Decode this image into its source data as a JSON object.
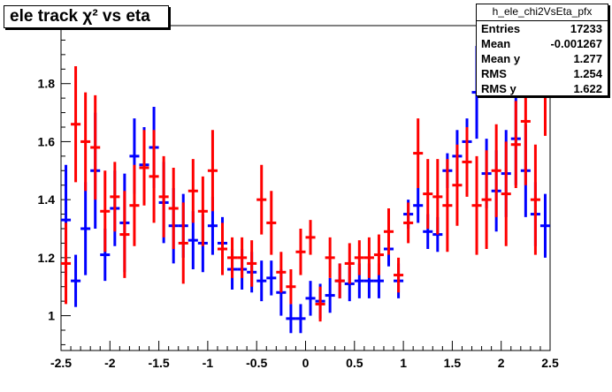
{
  "title": "ele track χ² vs eta",
  "stats": {
    "name": "h_ele_chi2VsEta_pfx",
    "rows": [
      {
        "label": "Entries",
        "value": "17233"
      },
      {
        "label": "Mean",
        "value": "-0.001267"
      },
      {
        "label": "Mean y",
        "value": "1.277"
      },
      {
        "label": "RMS",
        "value": "1.254"
      },
      {
        "label": "RMS y",
        "value": "1.622"
      }
    ]
  },
  "chart_data": {
    "type": "scatter",
    "title": "ele track χ² vs eta",
    "xlabel": "",
    "ylabel": "",
    "xlim": [
      -2.5,
      2.5
    ],
    "ylim": [
      0.88,
      2.0
    ],
    "x_ticks": [
      "-2.5",
      "-2",
      "-1.5",
      "-1",
      "-0.5",
      "0",
      "0.5",
      "1",
      "1.5",
      "2",
      "2.5"
    ],
    "y_ticks": [
      "1",
      "1.2",
      "1.4",
      "1.6",
      "1.8"
    ],
    "grid": false,
    "series": [
      {
        "color": "#0000ff",
        "x": [
          -2.45,
          -2.35,
          -2.25,
          -2.15,
          -2.05,
          -1.95,
          -1.85,
          -1.75,
          -1.65,
          -1.55,
          -1.45,
          -1.35,
          -1.25,
          -1.15,
          -1.05,
          -0.95,
          -0.85,
          -0.75,
          -0.65,
          -0.55,
          -0.45,
          -0.35,
          -0.25,
          -0.15,
          -0.05,
          0.05,
          0.15,
          0.25,
          0.35,
          0.45,
          0.55,
          0.65,
          0.75,
          0.85,
          0.95,
          1.05,
          1.15,
          1.25,
          1.35,
          1.45,
          1.55,
          1.65,
          1.75,
          1.85,
          1.95,
          2.05,
          2.15,
          2.25,
          2.35,
          2.45
        ],
        "y": [
          1.33,
          1.12,
          1.3,
          1.5,
          1.21,
          1.37,
          1.32,
          1.55,
          1.52,
          1.58,
          1.39,
          1.31,
          1.31,
          1.26,
          1.25,
          1.31,
          1.25,
          1.16,
          1.16,
          1.15,
          1.12,
          1.13,
          1.08,
          0.99,
          0.99,
          1.06,
          1.05,
          1.07,
          1.12,
          1.11,
          1.12,
          1.12,
          1.12,
          1.23,
          1.12,
          1.35,
          1.38,
          1.29,
          1.28,
          1.5,
          1.55,
          1.6,
          1.77,
          1.49,
          1.43,
          1.49,
          1.61,
          1.5,
          1.35,
          1.31
        ],
        "err": [
          0.19,
          0.09,
          0.16,
          0.2,
          0.09,
          0.13,
          0.17,
          0.13,
          0.13,
          0.14,
          0.14,
          0.13,
          0.11,
          0.1,
          0.1,
          0.1,
          0.09,
          0.07,
          0.07,
          0.07,
          0.07,
          0.06,
          0.08,
          0.05,
          0.05,
          0.06,
          0.06,
          0.06,
          0.06,
          0.06,
          0.06,
          0.06,
          0.06,
          0.06,
          0.06,
          0.05,
          0.06,
          0.06,
          0.06,
          0.06,
          0.09,
          0.08,
          0.16,
          0.12,
          0.14,
          0.15,
          0.16,
          0.16,
          0.11,
          0.11
        ]
      },
      {
        "color": "#ff0000",
        "x": [
          -2.45,
          -2.35,
          -2.25,
          -2.15,
          -2.05,
          -1.95,
          -1.85,
          -1.75,
          -1.65,
          -1.55,
          -1.45,
          -1.35,
          -1.25,
          -1.15,
          -1.05,
          -0.95,
          -0.85,
          -0.75,
          -0.65,
          -0.55,
          -0.45,
          -0.35,
          -0.25,
          -0.15,
          -0.05,
          0.05,
          0.15,
          0.25,
          0.35,
          0.45,
          0.55,
          0.65,
          0.75,
          0.85,
          0.95,
          1.05,
          1.15,
          1.25,
          1.35,
          1.45,
          1.55,
          1.65,
          1.75,
          1.85,
          1.95,
          2.05,
          2.15,
          2.25,
          2.35,
          2.45
        ],
        "y": [
          1.18,
          1.66,
          1.6,
          1.58,
          1.36,
          1.41,
          1.28,
          1.38,
          1.51,
          1.48,
          1.41,
          1.37,
          1.25,
          1.43,
          1.36,
          1.5,
          1.23,
          1.2,
          1.2,
          1.18,
          1.4,
          1.32,
          1.15,
          1.1,
          1.22,
          1.27,
          1.04,
          1.2,
          1.12,
          1.18,
          1.2,
          1.2,
          1.21,
          1.29,
          1.14,
          1.32,
          1.56,
          1.42,
          1.41,
          1.38,
          1.45,
          1.53,
          1.38,
          1.4,
          1.5,
          1.42,
          1.59,
          1.67,
          1.4,
          1.76
        ],
        "err": [
          0.14,
          0.2,
          0.17,
          0.18,
          0.14,
          0.12,
          0.15,
          0.14,
          0.13,
          0.16,
          0.14,
          0.14,
          0.14,
          0.11,
          0.12,
          0.14,
          0.09,
          0.07,
          0.07,
          0.08,
          0.12,
          0.11,
          0.07,
          0.06,
          0.08,
          0.06,
          0.06,
          0.07,
          0.06,
          0.07,
          0.06,
          0.07,
          0.07,
          0.08,
          0.06,
          0.07,
          0.12,
          0.12,
          0.13,
          0.16,
          0.14,
          0.12,
          0.17,
          0.17,
          0.16,
          0.18,
          0.15,
          0.22,
          0.19,
          0.14
        ]
      }
    ]
  }
}
